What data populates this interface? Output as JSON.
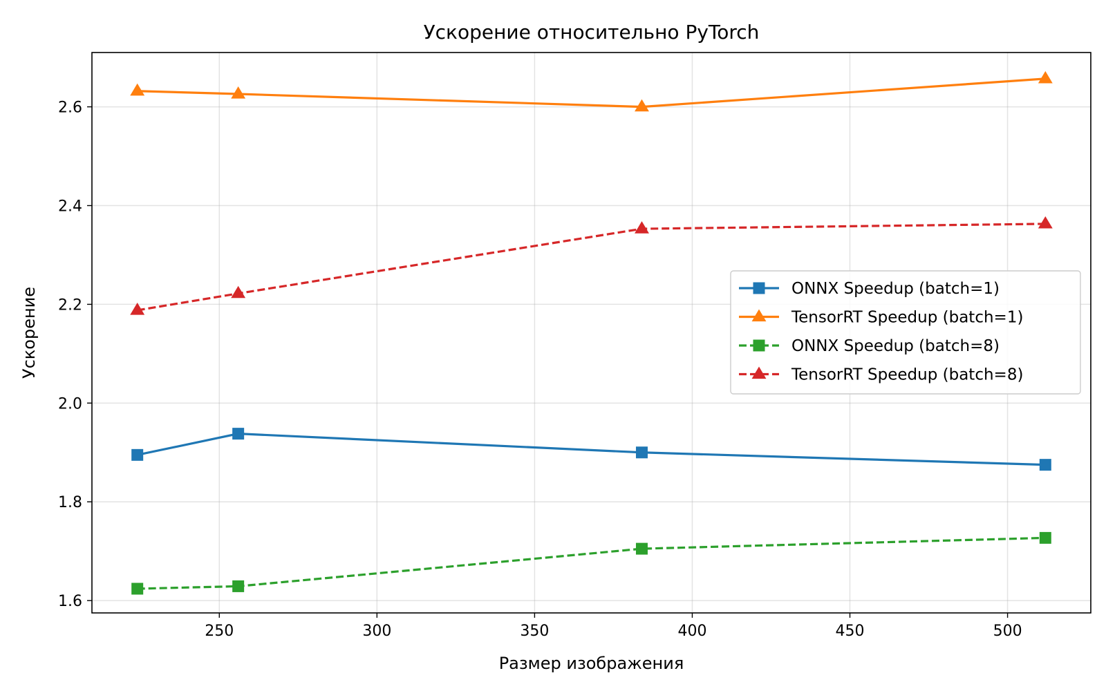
{
  "chart_data": {
    "type": "line",
    "title": "Ускорение относительно PyTorch",
    "xlabel": "Размер изображения",
    "ylabel": "Ускорение",
    "x": [
      224,
      256,
      384,
      512
    ],
    "xlim": [
      209.6,
      526.4
    ],
    "ylim": [
      1.575,
      2.71
    ],
    "xticks": [
      250,
      300,
      350,
      400,
      450,
      500
    ],
    "yticks": [
      1.6,
      1.8,
      2.0,
      2.2,
      2.4,
      2.6
    ],
    "xtick_labels": [
      "250",
      "300",
      "350",
      "400",
      "450",
      "500"
    ],
    "ytick_labels": [
      "1.6",
      "1.8",
      "2.0",
      "2.2",
      "2.4",
      "2.6"
    ],
    "grid": true,
    "legend_position": "center-right",
    "series": [
      {
        "name": "ONNX Speedup (batch=1)",
        "values": [
          1.895,
          1.938,
          1.9,
          1.875
        ],
        "color": "#1f77b4",
        "marker": "square",
        "line_style": "solid"
      },
      {
        "name": "TensorRT Speedup (batch=1)",
        "values": [
          2.632,
          2.626,
          2.6,
          2.657
        ],
        "color": "#ff7f0e",
        "marker": "triangle",
        "line_style": "solid"
      },
      {
        "name": "ONNX Speedup (batch=8)",
        "values": [
          1.624,
          1.629,
          1.705,
          1.727
        ],
        "color": "#2ca02c",
        "marker": "square",
        "line_style": "dashed"
      },
      {
        "name": "TensorRT Speedup (batch=8)",
        "values": [
          2.188,
          2.222,
          2.353,
          2.363
        ],
        "color": "#d62728",
        "marker": "triangle",
        "line_style": "dashed"
      }
    ]
  }
}
